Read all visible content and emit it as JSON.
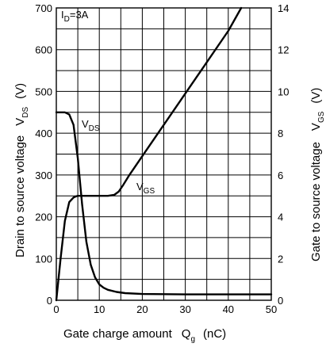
{
  "chart_data": {
    "type": "line",
    "xlabel": {
      "main": "Gate charge amount",
      "symbol": "Q",
      "sub": "g",
      "unit": "(nC)"
    },
    "ylabel_left": {
      "main": "Drain to source voltage",
      "symbol": "V",
      "sub": "DS",
      "unit": "(V)"
    },
    "ylabel_right": {
      "main": "Gate to source voltage",
      "symbol": "V",
      "sub": "GS",
      "unit": "(V)"
    },
    "xlim": [
      0,
      50
    ],
    "ylim_left": [
      0,
      700
    ],
    "ylim_right": [
      0,
      14
    ],
    "x_ticks": [
      "0",
      "10",
      "20",
      "30",
      "40",
      "50"
    ],
    "y_left_ticks": [
      "0",
      "100",
      "200",
      "300",
      "400",
      "500",
      "600",
      "700"
    ],
    "y_right_ticks": [
      "0",
      "2",
      "4",
      "6",
      "8",
      "10",
      "12",
      "14"
    ],
    "grid": true,
    "annotation": {
      "prefix": "I",
      "sub": "D",
      "suffix": "=3A"
    },
    "series": [
      {
        "name": "V_DS",
        "label": {
          "symbol": "V",
          "sub": "DS"
        },
        "axis": "left",
        "x": [
          0,
          2,
          3,
          4,
          5,
          6,
          7,
          8,
          9,
          10,
          11,
          12,
          14,
          16,
          20,
          30,
          40,
          50
        ],
        "y": [
          450,
          450,
          445,
          420,
          340,
          230,
          140,
          85,
          55,
          38,
          30,
          25,
          20,
          17,
          15,
          14,
          14,
          14
        ]
      },
      {
        "name": "V_GS",
        "label": {
          "symbol": "V",
          "sub": "GS"
        },
        "axis": "right",
        "x": [
          0,
          1,
          2,
          3,
          4,
          4.5,
          5,
          6,
          8,
          10,
          12,
          13.5,
          14.5,
          15.5,
          17,
          20,
          30,
          40,
          43
        ],
        "y": [
          0,
          2,
          3.8,
          4.7,
          4.92,
          4.97,
          5,
          5,
          5,
          5,
          5,
          5.05,
          5.2,
          5.5,
          6,
          6.9,
          9.9,
          12.9,
          14
        ]
      }
    ]
  }
}
